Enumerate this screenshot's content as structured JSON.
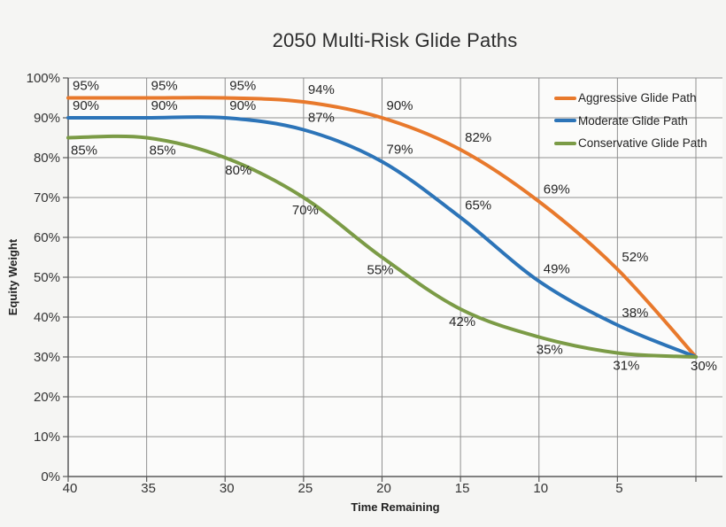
{
  "title": "2050 Multi-Risk Glide Paths",
  "chart_data": {
    "type": "line",
    "title": "2050 Multi-Risk Glide Paths",
    "xlabel": "Time Remaining",
    "ylabel": "Equity Weight",
    "x": [
      40,
      35,
      30,
      25,
      20,
      15,
      10,
      5,
      0
    ],
    "x_tick_labels": [
      "40",
      "35",
      "30",
      "25",
      "20",
      "15",
      "10",
      "5"
    ],
    "x_axis_reversed": true,
    "y_ticks": [
      0,
      10,
      20,
      30,
      40,
      50,
      60,
      70,
      80,
      90,
      100
    ],
    "y_tick_labels": [
      "0%",
      "10%",
      "20%",
      "30%",
      "40%",
      "50%",
      "60%",
      "70%",
      "80%",
      "90%",
      "100%"
    ],
    "ylim": [
      0,
      100
    ],
    "grid": true,
    "line_style": "smoothed",
    "legend_position": "inside-top-right",
    "series": [
      {
        "name": "Aggressive Glide Path",
        "color": "#e8792c",
        "values": [
          95,
          95,
          95,
          94,
          90,
          82,
          69,
          52,
          30
        ],
        "point_labels": [
          "95%",
          "95%",
          "95%",
          "94%",
          "90%",
          "82%",
          "69%",
          "52%",
          ""
        ]
      },
      {
        "name": "Moderate Glide Path",
        "color": "#2c74b8",
        "values": [
          90,
          90,
          90,
          87,
          79,
          65,
          49,
          38,
          30
        ],
        "point_labels": [
          "90%",
          "90%",
          "90%",
          "87%",
          "79%",
          "65%",
          "49%",
          "38%",
          ""
        ]
      },
      {
        "name": "Conservative Glide Path",
        "color": "#7b9b46",
        "values": [
          85,
          85,
          80,
          70,
          55,
          42,
          35,
          31,
          30
        ],
        "point_labels": [
          "85%",
          "85%",
          "80%",
          "70%",
          "55%",
          "42%",
          "35%",
          "31%",
          "30%"
        ]
      }
    ]
  },
  "colors": {
    "background": "#f5f5f3",
    "plot_fill": "#fbfbfa",
    "gridline": "#909090",
    "axis": "#5a5a5a",
    "text": "#2c2c2c"
  }
}
